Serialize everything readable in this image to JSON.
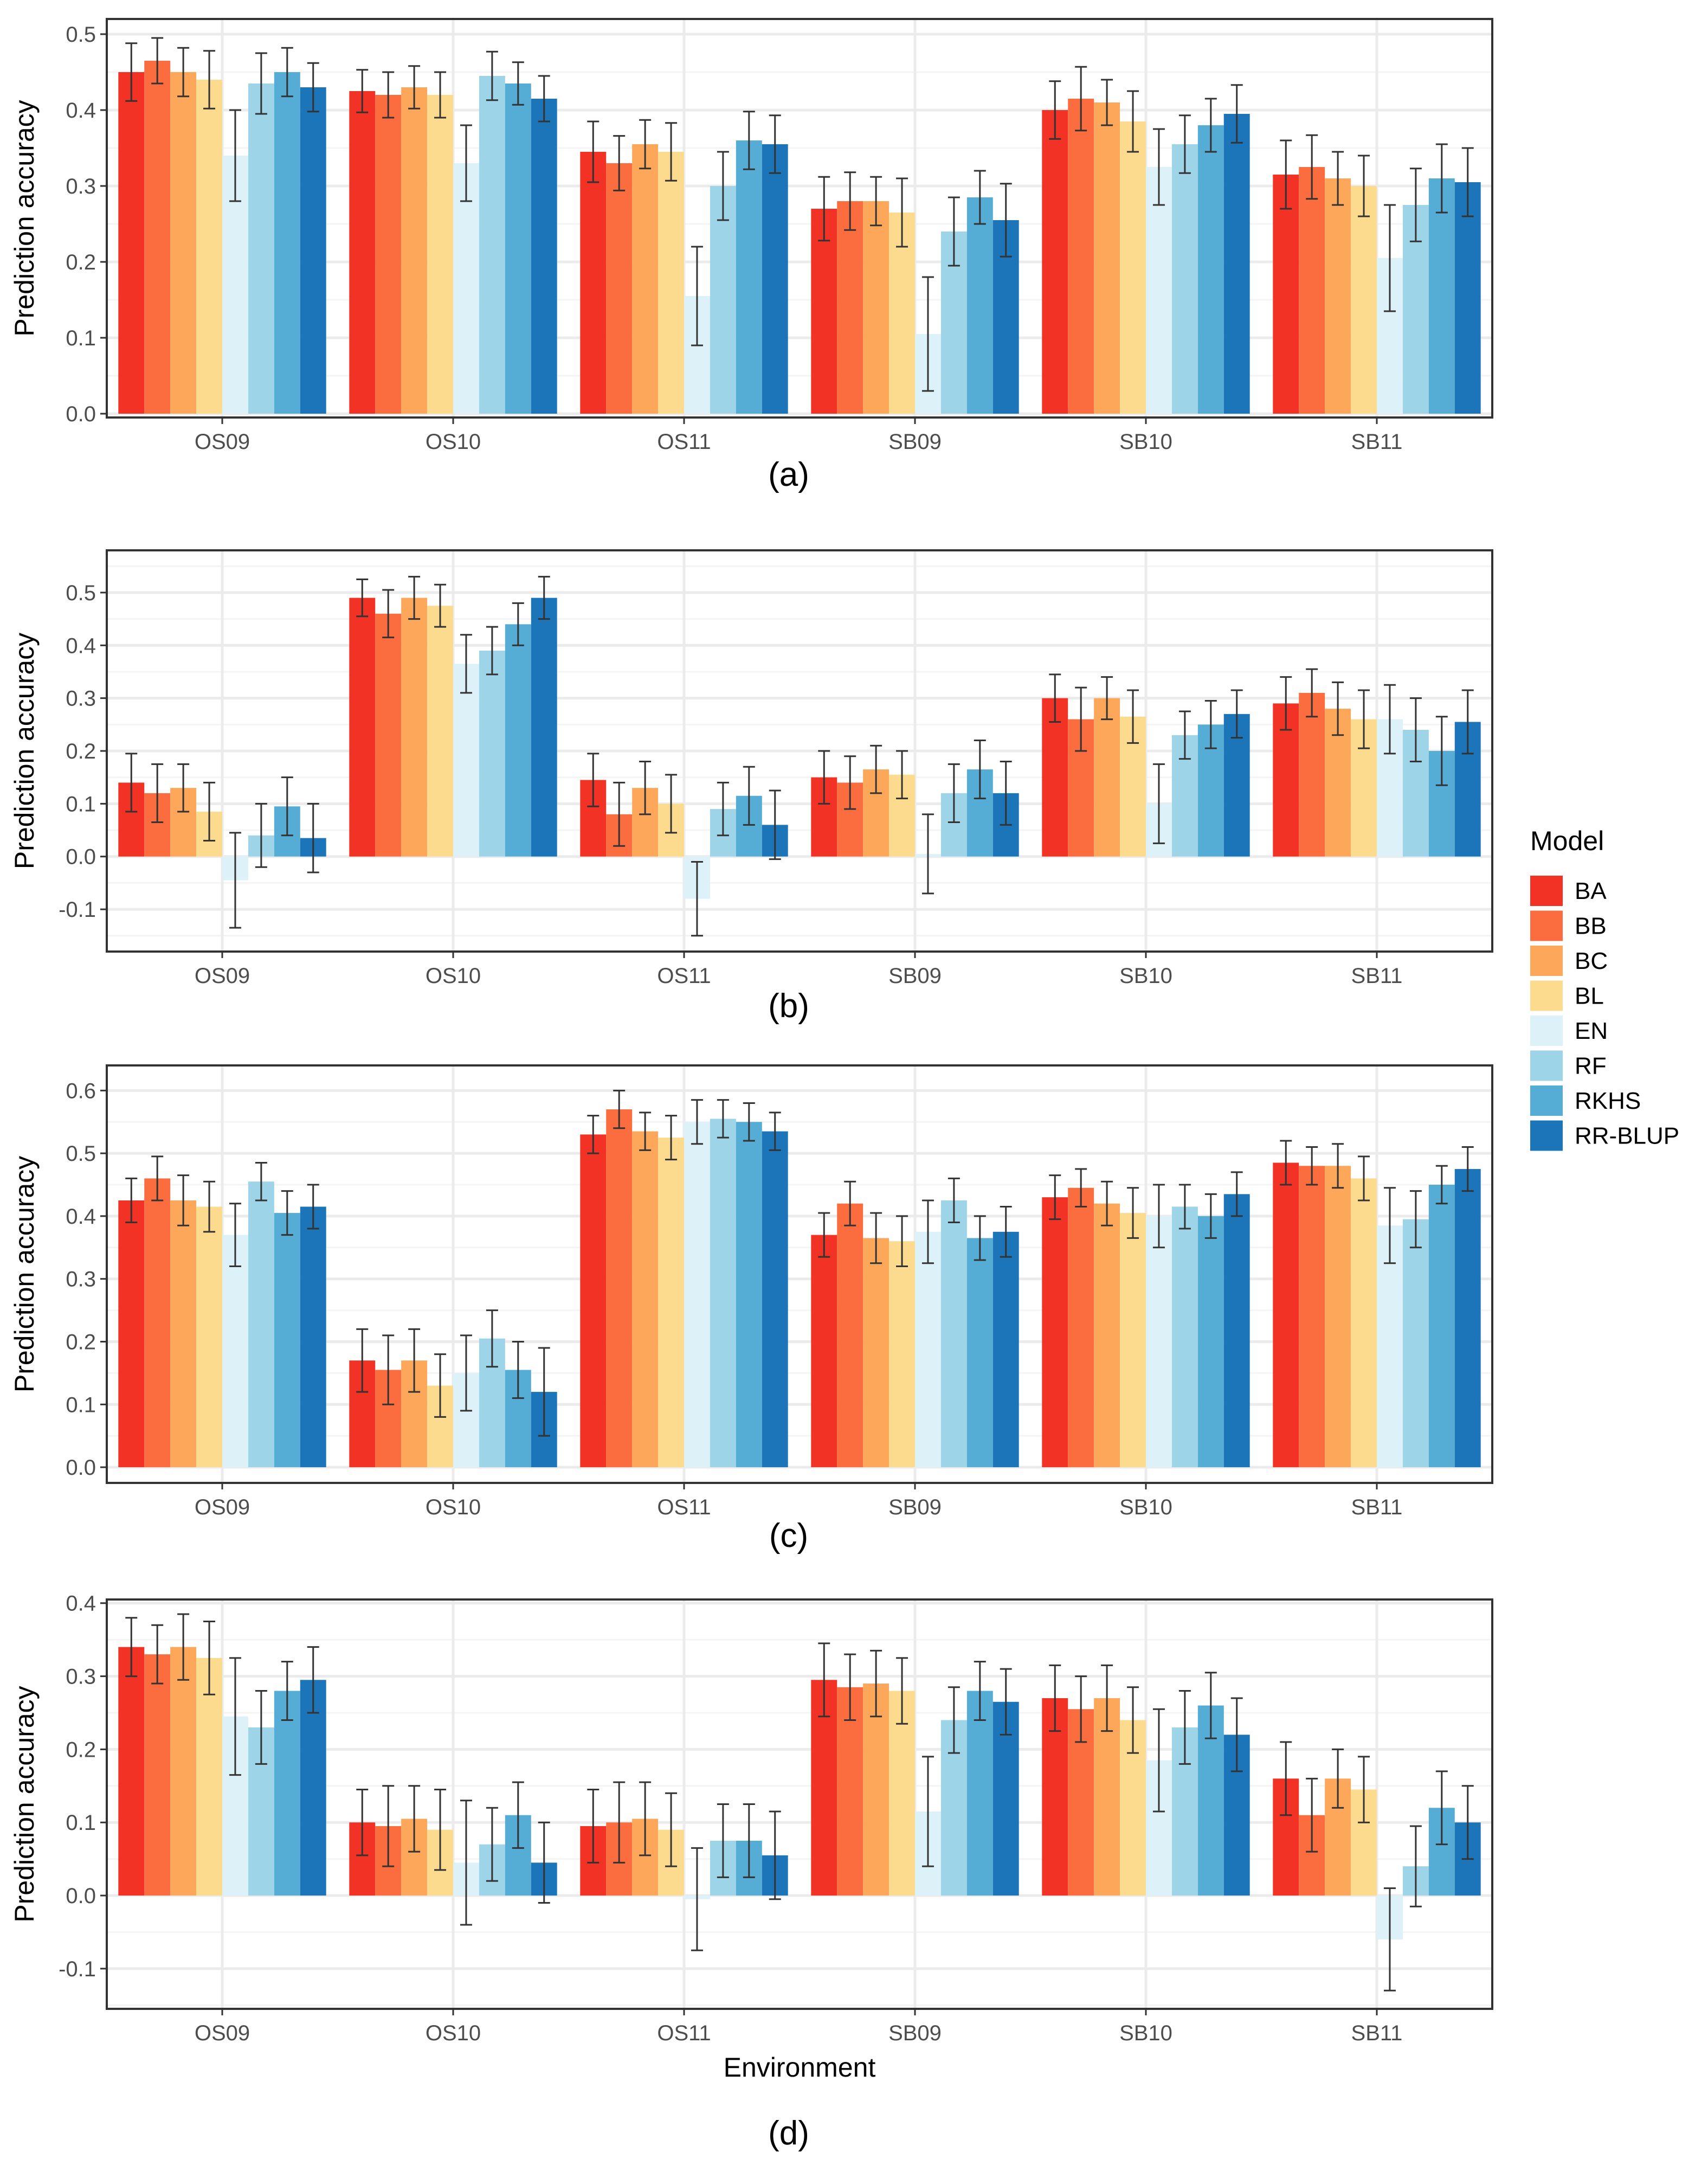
{
  "chart_data": [
    {
      "type": "bar",
      "panel_label": "(a)",
      "ylabel": "Prediction accuracy",
      "xlabel": "",
      "ylim": [
        -0.005,
        0.52
      ],
      "yticks": [
        0.0,
        0.1,
        0.2,
        0.3,
        0.4,
        0.5
      ],
      "ytick_labels": [
        "0.0",
        "0.1",
        "0.2",
        "0.3",
        "0.4",
        "0.5"
      ],
      "grid": true,
      "categories": [
        "OS09",
        "OS10",
        "OS11",
        "SB09",
        "SB10",
        "SB11"
      ],
      "series": [
        {
          "name": "BA",
          "values": [
            0.45,
            0.425,
            0.345,
            0.27,
            0.4,
            0.315
          ],
          "errors": [
            0.038,
            0.028,
            0.04,
            0.042,
            0.038,
            0.045
          ]
        },
        {
          "name": "BB",
          "values": [
            0.465,
            0.42,
            0.33,
            0.28,
            0.415,
            0.325
          ],
          "errors": [
            0.03,
            0.03,
            0.036,
            0.038,
            0.042,
            0.042
          ]
        },
        {
          "name": "BC",
          "values": [
            0.45,
            0.43,
            0.355,
            0.28,
            0.41,
            0.31
          ],
          "errors": [
            0.032,
            0.028,
            0.032,
            0.032,
            0.03,
            0.035
          ]
        },
        {
          "name": "BL",
          "values": [
            0.44,
            0.42,
            0.345,
            0.265,
            0.385,
            0.3
          ],
          "errors": [
            0.038,
            0.03,
            0.038,
            0.045,
            0.04,
            0.04
          ]
        },
        {
          "name": "EN",
          "values": [
            0.34,
            0.33,
            0.155,
            0.105,
            0.325,
            0.205
          ],
          "errors": [
            0.06,
            0.05,
            0.065,
            0.075,
            0.05,
            0.07
          ]
        },
        {
          "name": "RF",
          "values": [
            0.435,
            0.445,
            0.3,
            0.24,
            0.355,
            0.275
          ],
          "errors": [
            0.04,
            0.032,
            0.045,
            0.045,
            0.038,
            0.048
          ]
        },
        {
          "name": "RKHS",
          "values": [
            0.45,
            0.435,
            0.36,
            0.285,
            0.38,
            0.31
          ],
          "errors": [
            0.032,
            0.028,
            0.038,
            0.035,
            0.035,
            0.045
          ]
        },
        {
          "name": "RR-BLUP",
          "values": [
            0.43,
            0.415,
            0.355,
            0.255,
            0.395,
            0.305
          ],
          "errors": [
            0.032,
            0.03,
            0.038,
            0.048,
            0.038,
            0.045
          ]
        }
      ]
    },
    {
      "type": "bar",
      "panel_label": "(b)",
      "ylabel": "Prediction accuracy",
      "xlabel": "",
      "ylim": [
        -0.18,
        0.58
      ],
      "yticks": [
        -0.1,
        0.0,
        0.1,
        0.2,
        0.3,
        0.4,
        0.5
      ],
      "ytick_labels": [
        "-0.1",
        "0.0",
        "0.1",
        "0.2",
        "0.3",
        "0.4",
        "0.5"
      ],
      "grid": true,
      "categories": [
        "OS09",
        "OS10",
        "OS11",
        "SB09",
        "SB10",
        "SB11"
      ],
      "series": [
        {
          "name": "BA",
          "values": [
            0.14,
            0.49,
            0.145,
            0.15,
            0.3,
            0.29
          ],
          "errors": [
            0.055,
            0.035,
            0.05,
            0.05,
            0.045,
            0.05
          ]
        },
        {
          "name": "BB",
          "values": [
            0.12,
            0.46,
            0.08,
            0.14,
            0.26,
            0.31
          ],
          "errors": [
            0.055,
            0.045,
            0.06,
            0.05,
            0.06,
            0.045
          ]
        },
        {
          "name": "BC",
          "values": [
            0.13,
            0.49,
            0.13,
            0.165,
            0.3,
            0.28
          ],
          "errors": [
            0.045,
            0.04,
            0.05,
            0.045,
            0.04,
            0.05
          ]
        },
        {
          "name": "BL",
          "values": [
            0.085,
            0.475,
            0.1,
            0.155,
            0.265,
            0.26
          ],
          "errors": [
            0.055,
            0.04,
            0.055,
            0.045,
            0.05,
            0.055
          ]
        },
        {
          "name": "EN",
          "values": [
            -0.045,
            0.365,
            -0.08,
            0.005,
            0.1,
            0.26
          ],
          "errors": [
            0.09,
            0.055,
            0.07,
            0.075,
            0.075,
            0.065
          ]
        },
        {
          "name": "RF",
          "values": [
            0.04,
            0.39,
            0.09,
            0.12,
            0.23,
            0.24
          ],
          "errors": [
            0.06,
            0.045,
            0.05,
            0.055,
            0.045,
            0.06
          ]
        },
        {
          "name": "RKHS",
          "values": [
            0.095,
            0.44,
            0.115,
            0.165,
            0.25,
            0.2
          ],
          "errors": [
            0.055,
            0.04,
            0.055,
            0.055,
            0.045,
            0.065
          ]
        },
        {
          "name": "RR-BLUP",
          "values": [
            0.035,
            0.49,
            0.06,
            0.12,
            0.27,
            0.255
          ],
          "errors": [
            0.065,
            0.04,
            0.065,
            0.06,
            0.045,
            0.06
          ]
        }
      ]
    },
    {
      "type": "bar",
      "panel_label": "(c)",
      "ylabel": "Prediction accuracy",
      "xlabel": "",
      "ylim": [
        -0.025,
        0.64
      ],
      "yticks": [
        0.0,
        0.1,
        0.2,
        0.3,
        0.4,
        0.5,
        0.6
      ],
      "ytick_labels": [
        "0.0",
        "0.1",
        "0.2",
        "0.3",
        "0.4",
        "0.5",
        "0.6"
      ],
      "grid": true,
      "categories": [
        "OS09",
        "OS10",
        "OS11",
        "SB09",
        "SB10",
        "SB11"
      ],
      "series": [
        {
          "name": "BA",
          "values": [
            0.425,
            0.17,
            0.53,
            0.37,
            0.43,
            0.485
          ],
          "errors": [
            0.035,
            0.05,
            0.03,
            0.035,
            0.035,
            0.035
          ]
        },
        {
          "name": "BB",
          "values": [
            0.46,
            0.155,
            0.57,
            0.42,
            0.445,
            0.48
          ],
          "errors": [
            0.035,
            0.055,
            0.03,
            0.035,
            0.03,
            0.03
          ]
        },
        {
          "name": "BC",
          "values": [
            0.425,
            0.17,
            0.535,
            0.365,
            0.42,
            0.48
          ],
          "errors": [
            0.04,
            0.05,
            0.03,
            0.04,
            0.035,
            0.035
          ]
        },
        {
          "name": "BL",
          "values": [
            0.415,
            0.13,
            0.525,
            0.36,
            0.405,
            0.46
          ],
          "errors": [
            0.04,
            0.05,
            0.035,
            0.04,
            0.04,
            0.035
          ]
        },
        {
          "name": "EN",
          "values": [
            0.37,
            0.15,
            0.55,
            0.375,
            0.4,
            0.385
          ],
          "errors": [
            0.05,
            0.06,
            0.035,
            0.05,
            0.05,
            0.06
          ]
        },
        {
          "name": "RF",
          "values": [
            0.455,
            0.205,
            0.555,
            0.425,
            0.415,
            0.395
          ],
          "errors": [
            0.03,
            0.045,
            0.03,
            0.035,
            0.035,
            0.045
          ]
        },
        {
          "name": "RKHS",
          "values": [
            0.405,
            0.155,
            0.55,
            0.365,
            0.4,
            0.45
          ],
          "errors": [
            0.035,
            0.045,
            0.03,
            0.035,
            0.035,
            0.03
          ]
        },
        {
          "name": "RR-BLUP",
          "values": [
            0.415,
            0.12,
            0.535,
            0.375,
            0.435,
            0.475
          ],
          "errors": [
            0.035,
            0.07,
            0.03,
            0.04,
            0.035,
            0.035
          ]
        }
      ]
    },
    {
      "type": "bar",
      "panel_label": "(d)",
      "ylabel": "Prediction accuracy",
      "xlabel": "Environment",
      "ylim": [
        -0.155,
        0.405
      ],
      "yticks": [
        -0.1,
        0.0,
        0.1,
        0.2,
        0.3,
        0.4
      ],
      "ytick_labels": [
        "-0.1",
        "0.0",
        "0.1",
        "0.2",
        "0.3",
        "0.4"
      ],
      "grid": true,
      "categories": [
        "OS09",
        "OS10",
        "OS11",
        "SB09",
        "SB10",
        "SB11"
      ],
      "series": [
        {
          "name": "BA",
          "values": [
            0.34,
            0.1,
            0.095,
            0.295,
            0.27,
            0.16
          ],
          "errors": [
            0.04,
            0.045,
            0.05,
            0.05,
            0.045,
            0.05
          ]
        },
        {
          "name": "BB",
          "values": [
            0.33,
            0.095,
            0.1,
            0.285,
            0.255,
            0.11
          ],
          "errors": [
            0.04,
            0.055,
            0.055,
            0.045,
            0.045,
            0.05
          ]
        },
        {
          "name": "BC",
          "values": [
            0.34,
            0.105,
            0.105,
            0.29,
            0.27,
            0.16
          ],
          "errors": [
            0.045,
            0.045,
            0.05,
            0.045,
            0.045,
            0.04
          ]
        },
        {
          "name": "BL",
          "values": [
            0.325,
            0.09,
            0.09,
            0.28,
            0.24,
            0.145
          ],
          "errors": [
            0.05,
            0.055,
            0.05,
            0.045,
            0.045,
            0.045
          ]
        },
        {
          "name": "EN",
          "values": [
            0.245,
            0.045,
            -0.005,
            0.115,
            0.185,
            -0.06
          ],
          "errors": [
            0.08,
            0.085,
            0.07,
            0.075,
            0.07,
            0.07
          ]
        },
        {
          "name": "RF",
          "values": [
            0.23,
            0.07,
            0.075,
            0.24,
            0.23,
            0.04
          ],
          "errors": [
            0.05,
            0.05,
            0.05,
            0.045,
            0.05,
            0.055
          ]
        },
        {
          "name": "RKHS",
          "values": [
            0.28,
            0.11,
            0.075,
            0.28,
            0.26,
            0.12
          ],
          "errors": [
            0.04,
            0.045,
            0.05,
            0.04,
            0.045,
            0.05
          ]
        },
        {
          "name": "RR-BLUP",
          "values": [
            0.295,
            0.045,
            0.055,
            0.265,
            0.22,
            0.1
          ],
          "errors": [
            0.045,
            0.055,
            0.06,
            0.045,
            0.05,
            0.05
          ]
        }
      ]
    }
  ],
  "legend": {
    "title": "Model",
    "position": "right",
    "items": [
      {
        "label": "BA",
        "color": "#F23224"
      },
      {
        "label": "BB",
        "color": "#FB6C3F"
      },
      {
        "label": "BC",
        "color": "#FCA75A"
      },
      {
        "label": "BL",
        "color": "#FDDB8E"
      },
      {
        "label": "EN",
        "color": "#DDF1F8"
      },
      {
        "label": "RF",
        "color": "#9ED4E8"
      },
      {
        "label": "RKHS",
        "color": "#55ADD6"
      },
      {
        "label": "RR-BLUP",
        "color": "#1D75B9"
      }
    ]
  },
  "colors": {
    "panel_border": "#333333",
    "grid_major": "#EBEBEB",
    "grid_minor": "#F4F4F4",
    "error_bar": "#333333",
    "tick_text": "#4D4D4D"
  }
}
